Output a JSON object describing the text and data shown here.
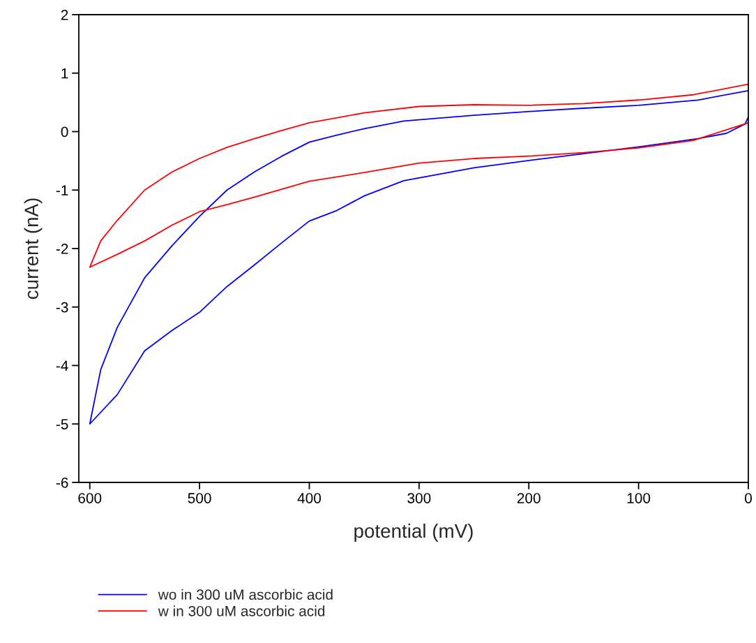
{
  "chart_data": {
    "type": "line",
    "xlabel": "potential (mV)",
    "ylabel": "current (nA)",
    "xlim": [
      610,
      0
    ],
    "xticks": [
      600,
      500,
      400,
      300,
      200,
      100,
      0
    ],
    "ylim": [
      -6,
      2
    ],
    "yticks": [
      -6,
      -5,
      -4,
      -3,
      -2,
      -1,
      0,
      1,
      2
    ],
    "grid": false,
    "legend": "bottom left",
    "marker": "none",
    "line_style": "solid",
    "series": [
      {
        "name": "wo in 300 uM ascorbic acid",
        "color": "#0000ff",
        "x": [
          0,
          46,
          100,
          150,
          186,
          250,
          314,
          350,
          375,
          400,
          425,
          450,
          475,
          500,
          525,
          550,
          575,
          590,
          600,
          590,
          575,
          550,
          525,
          500,
          475,
          450,
          425,
          400,
          375,
          350,
          314,
          250,
          186,
          100,
          46,
          20,
          3,
          0
        ],
        "values": [
          0.7,
          0.54,
          0.45,
          0.4,
          0.36,
          0.28,
          0.18,
          0.05,
          -0.06,
          -0.18,
          -0.42,
          -0.69,
          -1.0,
          -1.45,
          -1.95,
          -2.5,
          -3.35,
          -4.07,
          -5.0,
          -4.8,
          -4.5,
          -3.75,
          -3.4,
          -3.09,
          -2.65,
          -2.28,
          -1.9,
          -1.53,
          -1.35,
          -1.1,
          -0.84,
          -0.62,
          -0.46,
          -0.26,
          -0.12,
          -0.03,
          0.13,
          0.25
        ]
      },
      {
        "name": "w in 300 uM ascorbic acid",
        "color": "#ff0000",
        "x": [
          0,
          50,
          100,
          150,
          200,
          250,
          300,
          350,
          400,
          425,
          450,
          475,
          500,
          525,
          550,
          575,
          590,
          600,
          575,
          550,
          525,
          500,
          475,
          450,
          400,
          350,
          300,
          250,
          200,
          150,
          100,
          50,
          0
        ],
        "values": [
          0.81,
          0.63,
          0.54,
          0.48,
          0.45,
          0.46,
          0.43,
          0.32,
          0.15,
          0.02,
          -0.12,
          -0.27,
          -0.46,
          -0.69,
          -1.0,
          -1.52,
          -1.87,
          -2.32,
          -2.1,
          -1.87,
          -1.6,
          -1.37,
          -1.25,
          -1.12,
          -0.85,
          -0.7,
          -0.54,
          -0.46,
          -0.42,
          -0.36,
          -0.28,
          -0.15,
          0.15
        ]
      }
    ]
  }
}
